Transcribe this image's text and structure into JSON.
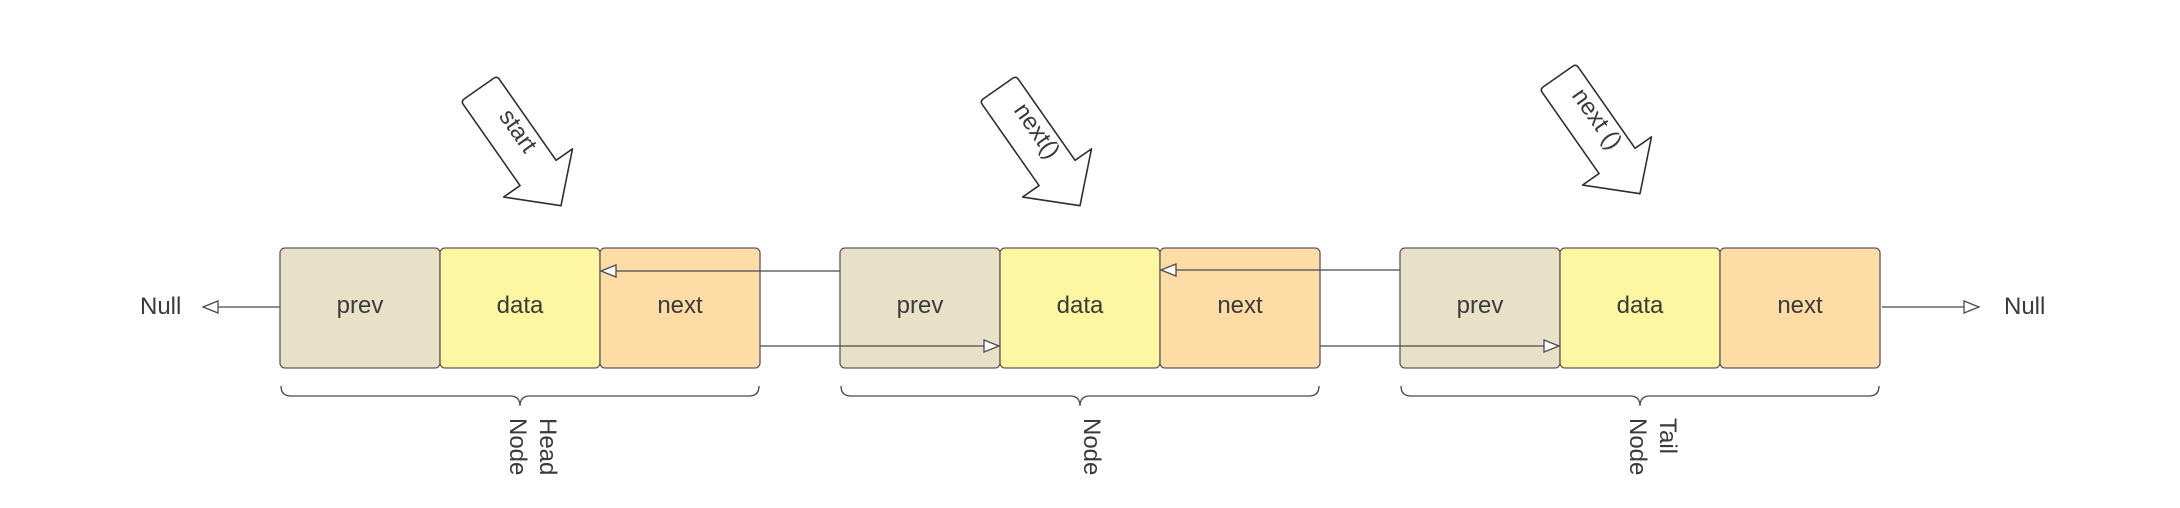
{
  "colors": {
    "prev": "#e8e1c8",
    "data": "#fdf7a2",
    "next": "#fddca6"
  },
  "nodes": [
    {
      "label_lines": [
        "Head",
        "Node"
      ],
      "cells": [
        {
          "key": "prev",
          "label": "prev"
        },
        {
          "key": "data",
          "label": "data"
        },
        {
          "key": "next",
          "label": "next"
        }
      ],
      "pointer": "start"
    },
    {
      "label_lines": [
        "Node"
      ],
      "cells": [
        {
          "key": "prev",
          "label": "prev"
        },
        {
          "key": "data",
          "label": "data"
        },
        {
          "key": "next",
          "label": "next"
        }
      ],
      "pointer": "next()"
    },
    {
      "label_lines": [
        "Tail",
        "Node"
      ],
      "cells": [
        {
          "key": "prev",
          "label": "prev"
        },
        {
          "key": "data",
          "label": "data"
        },
        {
          "key": "next",
          "label": "next"
        }
      ],
      "pointer": "next ()"
    }
  ],
  "null_left": "Null",
  "null_right": "Null"
}
